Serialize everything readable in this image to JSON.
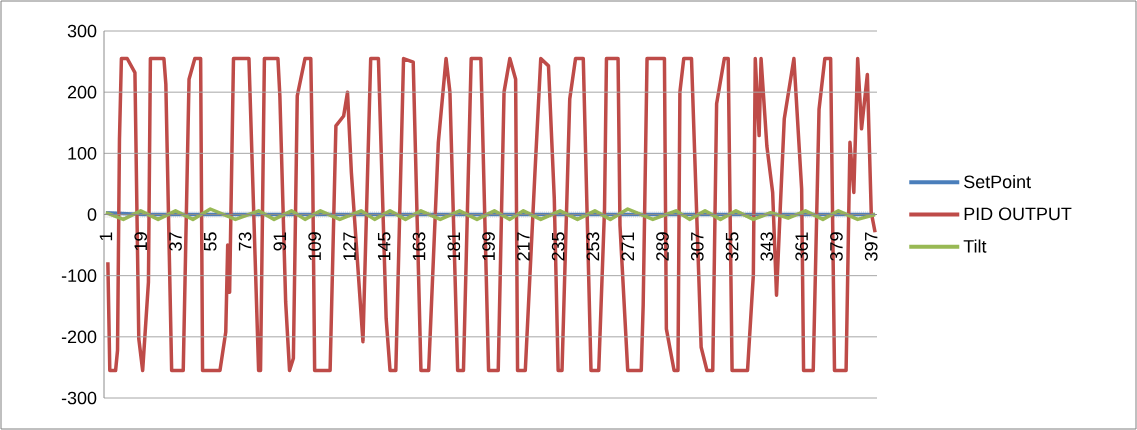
{
  "chart_data": {
    "type": "line",
    "xlim": [
      0,
      400
    ],
    "xticks": [
      1,
      19,
      37,
      55,
      73,
      91,
      109,
      127,
      145,
      163,
      181,
      199,
      217,
      235,
      253,
      271,
      289,
      307,
      325,
      343,
      361,
      379,
      397
    ],
    "ylim": [
      -300,
      300
    ],
    "yticks": [
      -300,
      -200,
      -100,
      0,
      100,
      200,
      300
    ],
    "grid": "y",
    "legend": "right",
    "series": [
      {
        "name": "SetPoint",
        "color": "#4a7ebb",
        "x": [
          1,
          20,
          399
        ],
        "values": [
          3,
          0,
          0
        ]
      },
      {
        "name": "PID OUTPUT",
        "color": "#be4b48",
        "x": [
          2,
          3,
          6,
          7,
          8,
          9,
          12,
          16,
          18,
          20,
          23,
          24,
          31,
          32,
          35,
          41,
          44,
          47,
          50,
          51,
          60,
          63,
          64,
          65,
          67,
          75,
          80,
          81,
          83,
          90,
          91,
          94,
          96,
          98,
          100,
          104,
          107,
          108,
          109,
          117,
          120,
          124,
          126,
          128,
          134,
          138,
          142,
          146,
          148,
          151,
          155,
          160,
          164,
          168,
          173,
          177,
          179,
          183,
          186,
          190,
          195,
          199,
          204,
          207,
          210,
          213,
          214,
          218,
          223,
          226,
          230,
          233,
          235,
          237,
          241,
          244,
          248,
          252,
          256,
          259,
          260,
          266,
          267,
          271,
          278,
          279,
          281,
          290,
          291,
          295,
          297,
          298,
          300,
          304,
          309,
          312,
          315,
          317,
          321,
          323,
          325,
          333,
          336,
          337,
          339,
          340,
          343,
          346,
          348,
          350,
          352,
          357,
          361,
          362,
          367,
          370,
          373,
          376,
          378,
          384,
          386,
          388,
          390,
          392,
          395,
          397,
          399
        ],
        "values": [
          -78,
          -255,
          -255,
          -222,
          123,
          255,
          255,
          232,
          -203,
          -255,
          -110,
          255,
          255,
          213,
          -255,
          -255,
          221,
          255,
          255,
          -255,
          -255,
          -192,
          -50,
          -127,
          255,
          255,
          -255,
          -255,
          255,
          255,
          194,
          -143,
          -255,
          -235,
          194,
          255,
          255,
          64,
          -255,
          -255,
          145,
          161,
          200,
          69,
          -208,
          255,
          255,
          -170,
          -255,
          -255,
          255,
          249,
          -255,
          -255,
          118,
          255,
          200,
          -255,
          -255,
          255,
          255,
          -255,
          -255,
          200,
          255,
          221,
          -255,
          -255,
          69,
          255,
          243,
          26,
          -255,
          -255,
          189,
          255,
          255,
          -255,
          -255,
          9,
          255,
          255,
          -18,
          -255,
          -255,
          -148,
          255,
          255,
          -187,
          -255,
          -255,
          200,
          255,
          255,
          -217,
          -255,
          -255,
          181,
          255,
          255,
          -255,
          -255,
          -99,
          255,
          129,
          255,
          112,
          36,
          -132,
          15,
          156,
          255,
          42,
          -255,
          -255,
          172,
          255,
          255,
          -255,
          -255,
          118,
          36,
          255,
          140,
          229,
          4,
          -29
        ]
      },
      {
        "name": "Tilt",
        "color": "#98b954",
        "x": [
          1,
          10,
          19,
          28,
          37,
          46,
          55,
          68,
          80,
          88,
          97,
          104,
          112,
          122,
          133,
          140,
          148,
          156,
          164,
          174,
          184,
          193,
          202,
          210,
          217,
          226,
          236,
          245,
          254,
          262,
          271,
          284,
          296,
          303,
          311,
          319,
          327,
          336,
          345,
          354,
          363,
          372,
          380,
          390,
          399
        ],
        "values": [
          3,
          -8,
          6,
          -8,
          6,
          -8,
          9,
          -8,
          6,
          -8,
          6,
          -8,
          6,
          -8,
          6,
          -8,
          6,
          -8,
          6,
          -8,
          6,
          -8,
          6,
          -8,
          6,
          -8,
          6,
          -8,
          6,
          -8,
          9,
          -8,
          6,
          -8,
          6,
          -8,
          6,
          -8,
          3,
          -6,
          6,
          -8,
          6,
          -8,
          0
        ]
      }
    ]
  }
}
